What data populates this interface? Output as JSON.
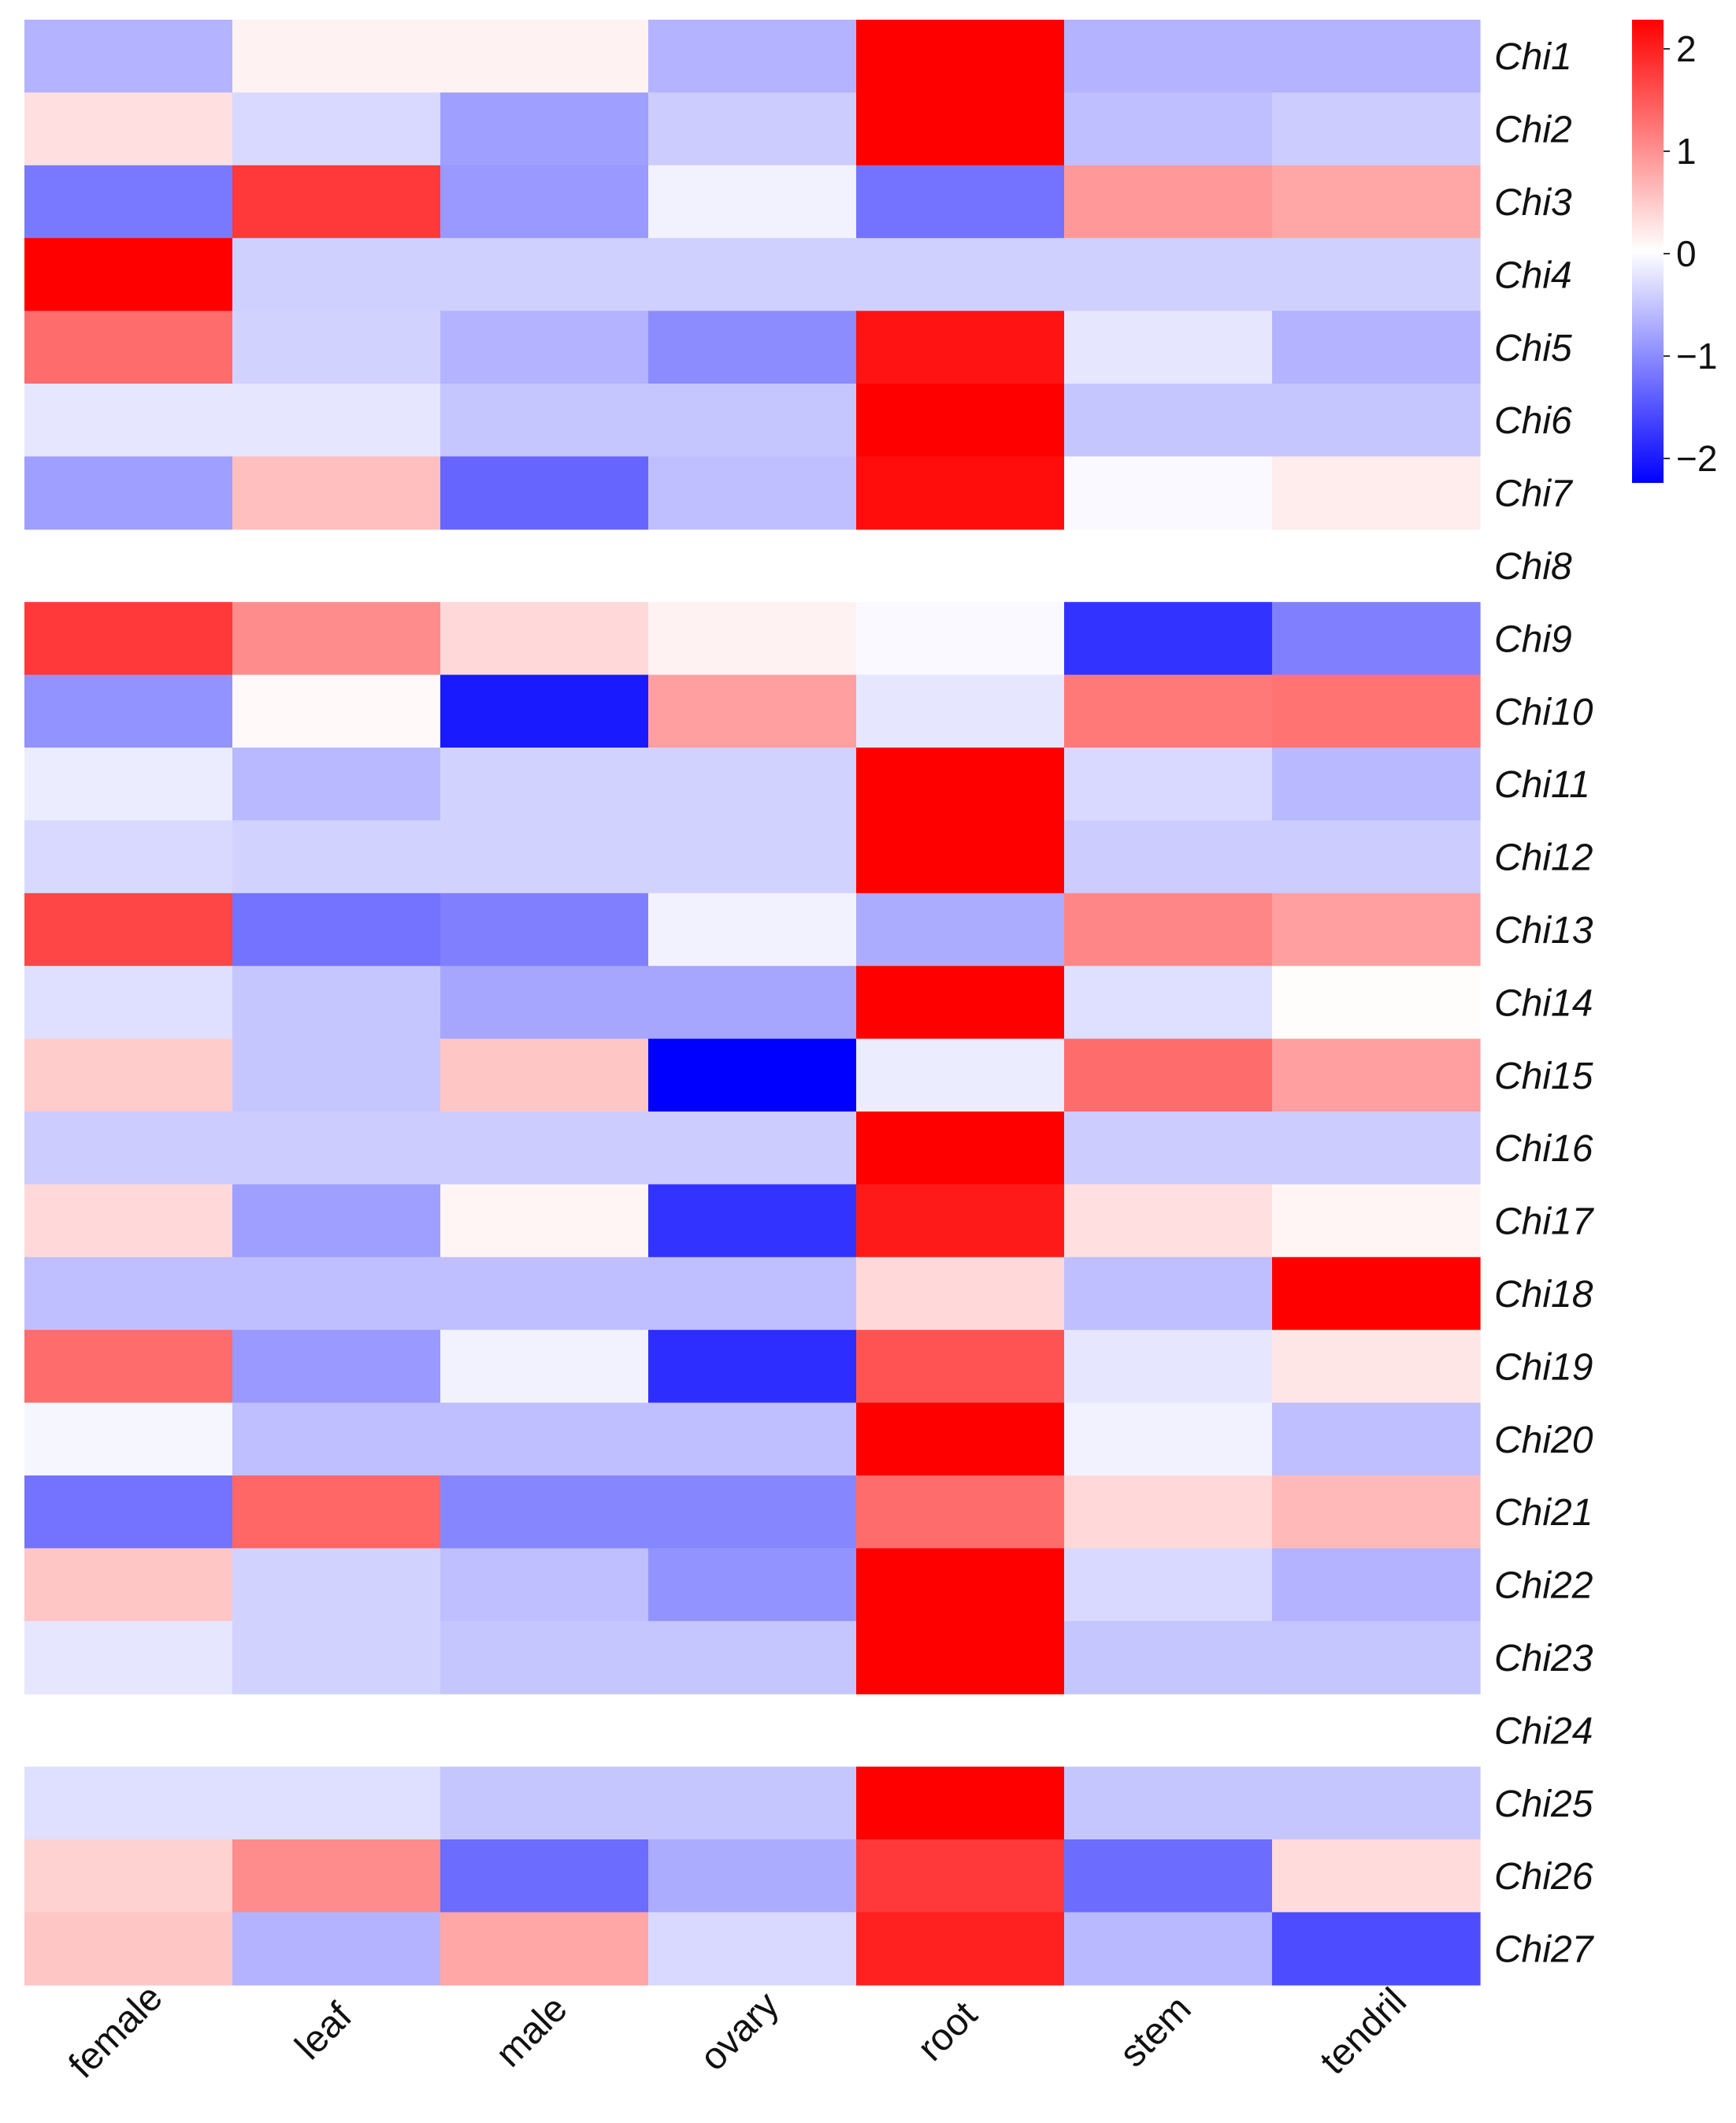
{
  "chart_data": {
    "type": "heatmap",
    "columns": [
      "female",
      "leaf",
      "male",
      "ovary",
      "root",
      "stem",
      "tendril"
    ],
    "rows": [
      "Chi1",
      "Chi2",
      "Chi3",
      "Chi4",
      "Chi5",
      "Chi6",
      "Chi7",
      "Chi8",
      "Chi9",
      "Chi10",
      "Chi11",
      "Chi12",
      "Chi13",
      "Chi14",
      "Chi15",
      "Chi16",
      "Chi17",
      "Chi18",
      "Chi19",
      "Chi20",
      "Chi21",
      "Chi22",
      "Chi23",
      "Chi24",
      "Chi25",
      "Chi26",
      "Chi27"
    ],
    "values": [
      [
        -0.6,
        0.1,
        0.1,
        -0.6,
        2.2,
        -0.6,
        -0.6
      ],
      [
        0.25,
        -0.3,
        -0.75,
        -0.4,
        2.2,
        -0.5,
        -0.4
      ],
      [
        -1.05,
        1.55,
        -0.8,
        -0.1,
        -1.1,
        0.8,
        0.7
      ],
      [
        2.2,
        -0.37,
        -0.37,
        -0.37,
        -0.37,
        -0.37,
        -0.37
      ],
      [
        1.15,
        -0.35,
        -0.6,
        -0.9,
        1.85,
        -0.2,
        -0.6
      ],
      [
        -0.2,
        -0.2,
        -0.45,
        -0.45,
        2.2,
        -0.45,
        -0.45
      ],
      [
        -0.75,
        0.5,
        -1.2,
        -0.5,
        1.9,
        -0.05,
        0.15
      ],
      [
        null,
        null,
        null,
        null,
        null,
        null,
        null
      ],
      [
        1.55,
        0.9,
        0.3,
        0.1,
        -0.05,
        -1.6,
        -1.0
      ],
      [
        -0.85,
        0.05,
        -1.8,
        0.75,
        -0.2,
        1.05,
        1.1
      ],
      [
        -0.15,
        -0.55,
        -0.35,
        -0.35,
        2.2,
        -0.3,
        -0.55
      ],
      [
        -0.3,
        -0.35,
        -0.35,
        -0.35,
        2.2,
        -0.4,
        -0.4
      ],
      [
        1.45,
        -1.1,
        -1.0,
        -0.1,
        -0.65,
        0.95,
        0.75
      ],
      [
        -0.25,
        -0.45,
        -0.7,
        -0.7,
        2.2,
        -0.25,
        0.02
      ],
      [
        0.4,
        -0.45,
        0.45,
        -2.1,
        -0.15,
        1.15,
        0.75
      ],
      [
        -0.4,
        -0.4,
        -0.4,
        -0.4,
        2.2,
        -0.4,
        -0.4
      ],
      [
        0.3,
        -0.75,
        0.08,
        -1.6,
        1.8,
        0.25,
        0.08
      ],
      [
        -0.5,
        -0.5,
        -0.5,
        -0.5,
        0.3,
        -0.5,
        2.2
      ],
      [
        1.15,
        -0.8,
        -0.1,
        -1.65,
        1.35,
        -0.2,
        0.2
      ],
      [
        -0.07,
        -0.5,
        -0.5,
        -0.5,
        2.2,
        -0.1,
        -0.5
      ],
      [
        -1.1,
        1.2,
        -0.95,
        -0.95,
        1.15,
        0.3,
        0.55
      ],
      [
        0.45,
        -0.35,
        -0.5,
        -0.85,
        2.2,
        -0.3,
        -0.6
      ],
      [
        -0.2,
        -0.35,
        -0.45,
        -0.45,
        2.2,
        -0.45,
        -0.45
      ],
      [
        null,
        null,
        null,
        null,
        null,
        null,
        null
      ],
      [
        -0.25,
        -0.25,
        -0.45,
        -0.45,
        2.2,
        -0.45,
        -0.45
      ],
      [
        0.35,
        0.9,
        -1.15,
        -0.65,
        1.55,
        -1.15,
        0.28
      ],
      [
        0.45,
        -0.6,
        0.7,
        -0.3,
        1.75,
        -0.55,
        -1.4
      ]
    ],
    "colorbar": {
      "range": [
        -2,
        2
      ],
      "ticks": [
        "2",
        "1",
        "0",
        "−1",
        "−2"
      ],
      "colors": {
        "low": "#0000ff",
        "mid": "#ffffff",
        "high": "#ff0000"
      },
      "placement": "top-right"
    }
  }
}
